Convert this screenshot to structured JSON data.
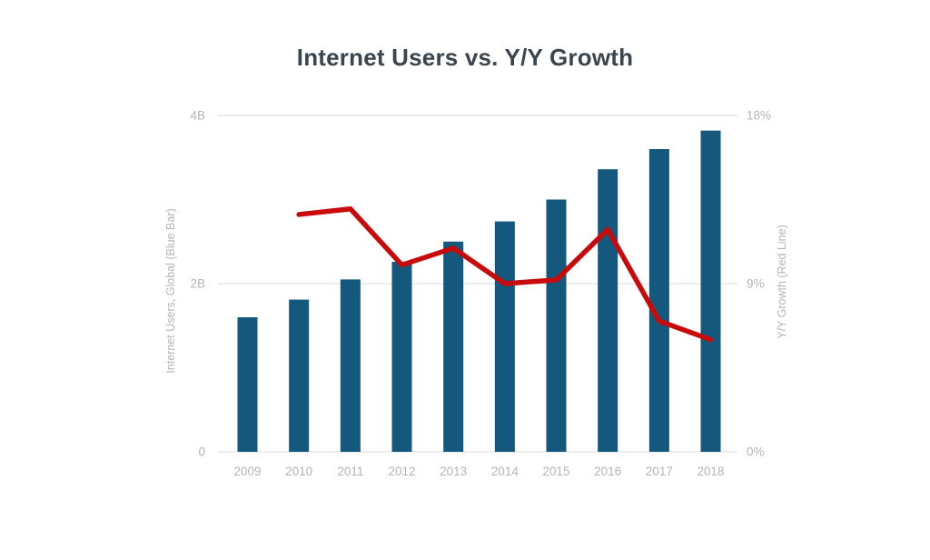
{
  "page": {
    "background": "#FFFFFF"
  },
  "chart_data": {
    "type": "bar",
    "subtype": "bar-and-line-dual-axis",
    "title": "Internet Users vs. Y/Y Growth",
    "categories": [
      "2009",
      "2010",
      "2011",
      "2012",
      "2013",
      "2014",
      "2015",
      "2016",
      "2017",
      "2018"
    ],
    "series": [
      {
        "name": "Internet Users, Global",
        "type": "bar",
        "axis": "left",
        "unit": "billions",
        "color": "#14587E",
        "values": [
          1.6,
          1.81,
          2.05,
          2.26,
          2.5,
          2.74,
          3.0,
          3.36,
          3.6,
          3.82
        ]
      },
      {
        "name": "Y/Y Growth",
        "type": "line",
        "axis": "right",
        "unit": "percent",
        "color": "#C80A0A",
        "values": [
          null,
          12.7,
          13,
          10,
          10.9,
          9,
          9.2,
          11.9,
          7,
          6
        ]
      }
    ],
    "xlabel": "",
    "ylabel_left": "Internet Users, Global (Blue Bar)",
    "ylabel_right": "Y/Y Growth (Red Line)",
    "y_left": {
      "min": 0,
      "max": 4,
      "ticks": [
        {
          "label": "4B",
          "value": 4
        },
        {
          "label": "2B",
          "value": 2
        },
        {
          "label": "0",
          "value": 0
        }
      ]
    },
    "y_right": {
      "min": 0,
      "max": 18,
      "ticks": [
        {
          "label": "18%",
          "value": 18
        },
        {
          "label": "9%",
          "value": 9
        },
        {
          "label": "0%",
          "value": 0
        }
      ]
    },
    "grid": true,
    "legend": "none",
    "colors": {
      "title": "#3B454E",
      "tick_label": "#B2B4B6",
      "gridline": "#E2E2E2",
      "background": "#FFFFFF"
    }
  }
}
